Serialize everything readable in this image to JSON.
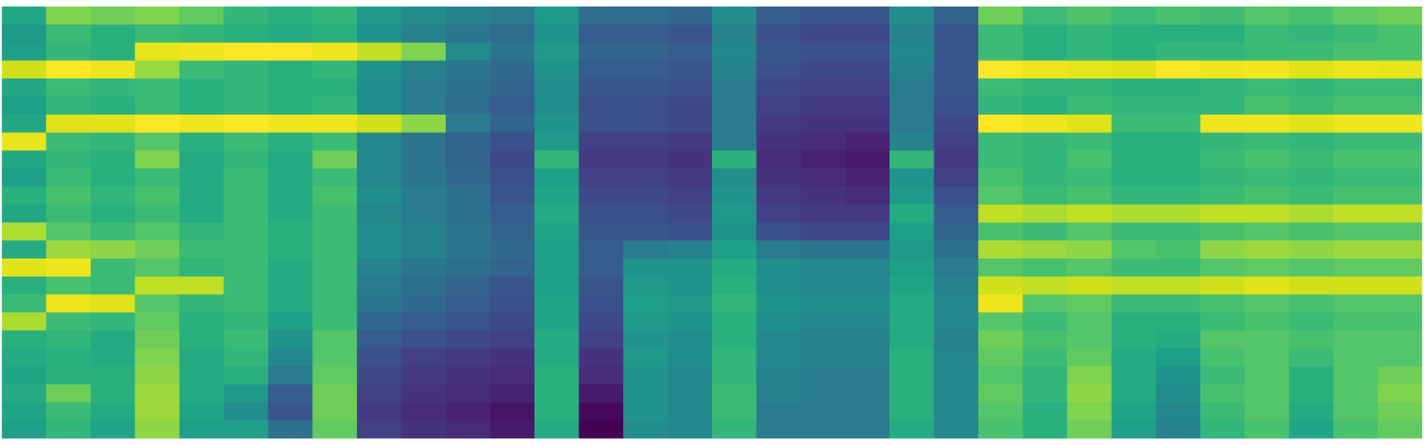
{
  "chart_data": {
    "type": "heatmap",
    "color": "viridis",
    "tick_labels": false,
    "cells": [
      [
        55,
        72,
        70,
        72,
        68,
        60,
        58,
        60,
        50,
        45,
        42,
        40,
        50,
        35,
        35,
        33,
        45,
        30,
        28,
        28,
        45,
        32,
        70,
        62,
        65,
        62,
        64,
        63,
        66,
        64,
        68,
        70
      ],
      [
        50,
        62,
        58,
        62,
        60,
        58,
        56,
        58,
        48,
        42,
        38,
        35,
        48,
        30,
        30,
        28,
        42,
        26,
        24,
        24,
        42,
        28,
        62,
        58,
        60,
        58,
        58,
        58,
        62,
        60,
        62,
        64
      ],
      [
        52,
        60,
        58,
        85,
        86,
        88,
        88,
        86,
        80,
        72,
        45,
        38,
        50,
        32,
        32,
        30,
        44,
        28,
        26,
        26,
        44,
        28,
        62,
        58,
        60,
        58,
        60,
        60,
        62,
        62,
        64,
        64
      ],
      [
        82,
        88,
        86,
        75,
        62,
        60,
        58,
        60,
        48,
        42,
        38,
        34,
        48,
        30,
        30,
        28,
        42,
        26,
        24,
        24,
        42,
        28,
        88,
        86,
        85,
        84,
        88,
        86,
        87,
        84,
        86,
        85
      ],
      [
        55,
        62,
        60,
        62,
        58,
        60,
        58,
        58,
        46,
        40,
        36,
        32,
        46,
        28,
        28,
        26,
        40,
        24,
        22,
        22,
        40,
        28,
        62,
        60,
        60,
        58,
        58,
        60,
        62,
        60,
        62,
        62
      ],
      [
        52,
        60,
        58,
        62,
        58,
        60,
        58,
        60,
        46,
        40,
        35,
        30,
        46,
        26,
        26,
        24,
        40,
        22,
        20,
        20,
        40,
        26,
        60,
        58,
        62,
        60,
        60,
        60,
        64,
        62,
        64,
        64
      ],
      [
        55,
        84,
        84,
        88,
        86,
        88,
        86,
        86,
        82,
        74,
        40,
        32,
        48,
        26,
        26,
        24,
        40,
        20,
        18,
        18,
        40,
        24,
        88,
        86,
        84,
        62,
        62,
        86,
        86,
        84,
        86,
        86
      ],
      [
        85,
        62,
        60,
        66,
        58,
        62,
        58,
        62,
        44,
        38,
        32,
        26,
        50,
        22,
        22,
        20,
        40,
        18,
        16,
        14,
        42,
        22,
        62,
        60,
        62,
        58,
        58,
        60,
        62,
        60,
        62,
        62
      ],
      [
        55,
        60,
        58,
        72,
        56,
        60,
        56,
        70,
        44,
        38,
        32,
        24,
        60,
        20,
        20,
        18,
        58,
        16,
        14,
        12,
        60,
        20,
        62,
        60,
        64,
        58,
        58,
        62,
        64,
        62,
        64,
        64
      ],
      [
        52,
        62,
        58,
        62,
        56,
        62,
        56,
        62,
        44,
        38,
        34,
        26,
        52,
        22,
        22,
        20,
        46,
        18,
        16,
        14,
        48,
        22,
        64,
        60,
        62,
        58,
        58,
        60,
        62,
        60,
        62,
        62
      ],
      [
        58,
        64,
        60,
        64,
        56,
        62,
        56,
        64,
        46,
        40,
        36,
        28,
        54,
        24,
        24,
        22,
        48,
        20,
        18,
        16,
        50,
        26,
        66,
        62,
        64,
        60,
        60,
        62,
        64,
        62,
        64,
        64
      ],
      [
        55,
        62,
        58,
        62,
        56,
        62,
        56,
        62,
        44,
        40,
        36,
        30,
        56,
        26,
        26,
        24,
        50,
        22,
        20,
        20,
        56,
        30,
        80,
        78,
        80,
        78,
        78,
        80,
        80,
        78,
        80,
        80
      ],
      [
        78,
        66,
        62,
        66,
        60,
        62,
        58,
        62,
        46,
        42,
        38,
        32,
        54,
        28,
        28,
        26,
        48,
        26,
        24,
        24,
        52,
        32,
        64,
        62,
        66,
        62,
        62,
        64,
        66,
        64,
        66,
        66
      ],
      [
        56,
        76,
        74,
        70,
        62,
        62,
        58,
        62,
        46,
        42,
        38,
        34,
        52,
        30,
        40,
        42,
        52,
        40,
        38,
        38,
        50,
        36,
        78,
        76,
        74,
        66,
        64,
        74,
        76,
        74,
        76,
        76
      ],
      [
        84,
        86,
        62,
        66,
        60,
        62,
        56,
        62,
        42,
        38,
        36,
        32,
        52,
        30,
        48,
        48,
        56,
        46,
        44,
        44,
        52,
        40,
        66,
        64,
        66,
        62,
        62,
        66,
        68,
        66,
        68,
        68
      ],
      [
        58,
        64,
        62,
        80,
        80,
        62,
        56,
        62,
        40,
        36,
        32,
        28,
        52,
        28,
        50,
        48,
        58,
        46,
        44,
        44,
        54,
        42,
        82,
        80,
        82,
        80,
        80,
        82,
        84,
        82,
        82,
        82
      ],
      [
        62,
        86,
        84,
        66,
        60,
        62,
        56,
        62,
        38,
        34,
        30,
        26,
        54,
        26,
        52,
        50,
        60,
        48,
        46,
        46,
        56,
        44,
        86,
        66,
        68,
        62,
        62,
        64,
        66,
        64,
        66,
        66
      ],
      [
        78,
        62,
        60,
        68,
        58,
        60,
        52,
        62,
        34,
        30,
        28,
        24,
        54,
        24,
        50,
        48,
        58,
        46,
        44,
        44,
        56,
        44,
        66,
        62,
        66,
        58,
        58,
        62,
        64,
        62,
        64,
        64
      ],
      [
        58,
        60,
        56,
        70,
        58,
        62,
        48,
        66,
        30,
        26,
        24,
        22,
        56,
        22,
        48,
        46,
        58,
        44,
        42,
        42,
        56,
        42,
        70,
        64,
        66,
        58,
        56,
        66,
        66,
        64,
        66,
        66
      ],
      [
        56,
        58,
        56,
        72,
        56,
        60,
        44,
        66,
        26,
        22,
        20,
        18,
        56,
        18,
        50,
        46,
        60,
        44,
        42,
        42,
        58,
        44,
        68,
        62,
        68,
        56,
        52,
        64,
        66,
        62,
        66,
        66
      ],
      [
        54,
        58,
        58,
        74,
        56,
        58,
        40,
        68,
        24,
        20,
        18,
        16,
        58,
        16,
        48,
        44,
        60,
        42,
        40,
        40,
        58,
        44,
        66,
        60,
        72,
        56,
        48,
        62,
        66,
        58,
        66,
        70
      ],
      [
        56,
        70,
        58,
        76,
        56,
        50,
        30,
        70,
        22,
        18,
        16,
        14,
        58,
        12,
        48,
        44,
        62,
        42,
        40,
        40,
        58,
        44,
        68,
        60,
        74,
        56,
        46,
        64,
        66,
        58,
        66,
        72
      ],
      [
        54,
        62,
        56,
        76,
        54,
        46,
        28,
        70,
        20,
        16,
        14,
        10,
        58,
        8,
        48,
        44,
        62,
        40,
        40,
        40,
        58,
        44,
        66,
        58,
        72,
        54,
        44,
        62,
        66,
        56,
        66,
        70
      ],
      [
        52,
        60,
        54,
        74,
        52,
        52,
        36,
        68,
        22,
        18,
        16,
        12,
        56,
        6,
        46,
        44,
        60,
        40,
        40,
        40,
        56,
        44,
        64,
        58,
        70,
        52,
        42,
        60,
        64,
        54,
        64,
        68
      ]
    ]
  }
}
